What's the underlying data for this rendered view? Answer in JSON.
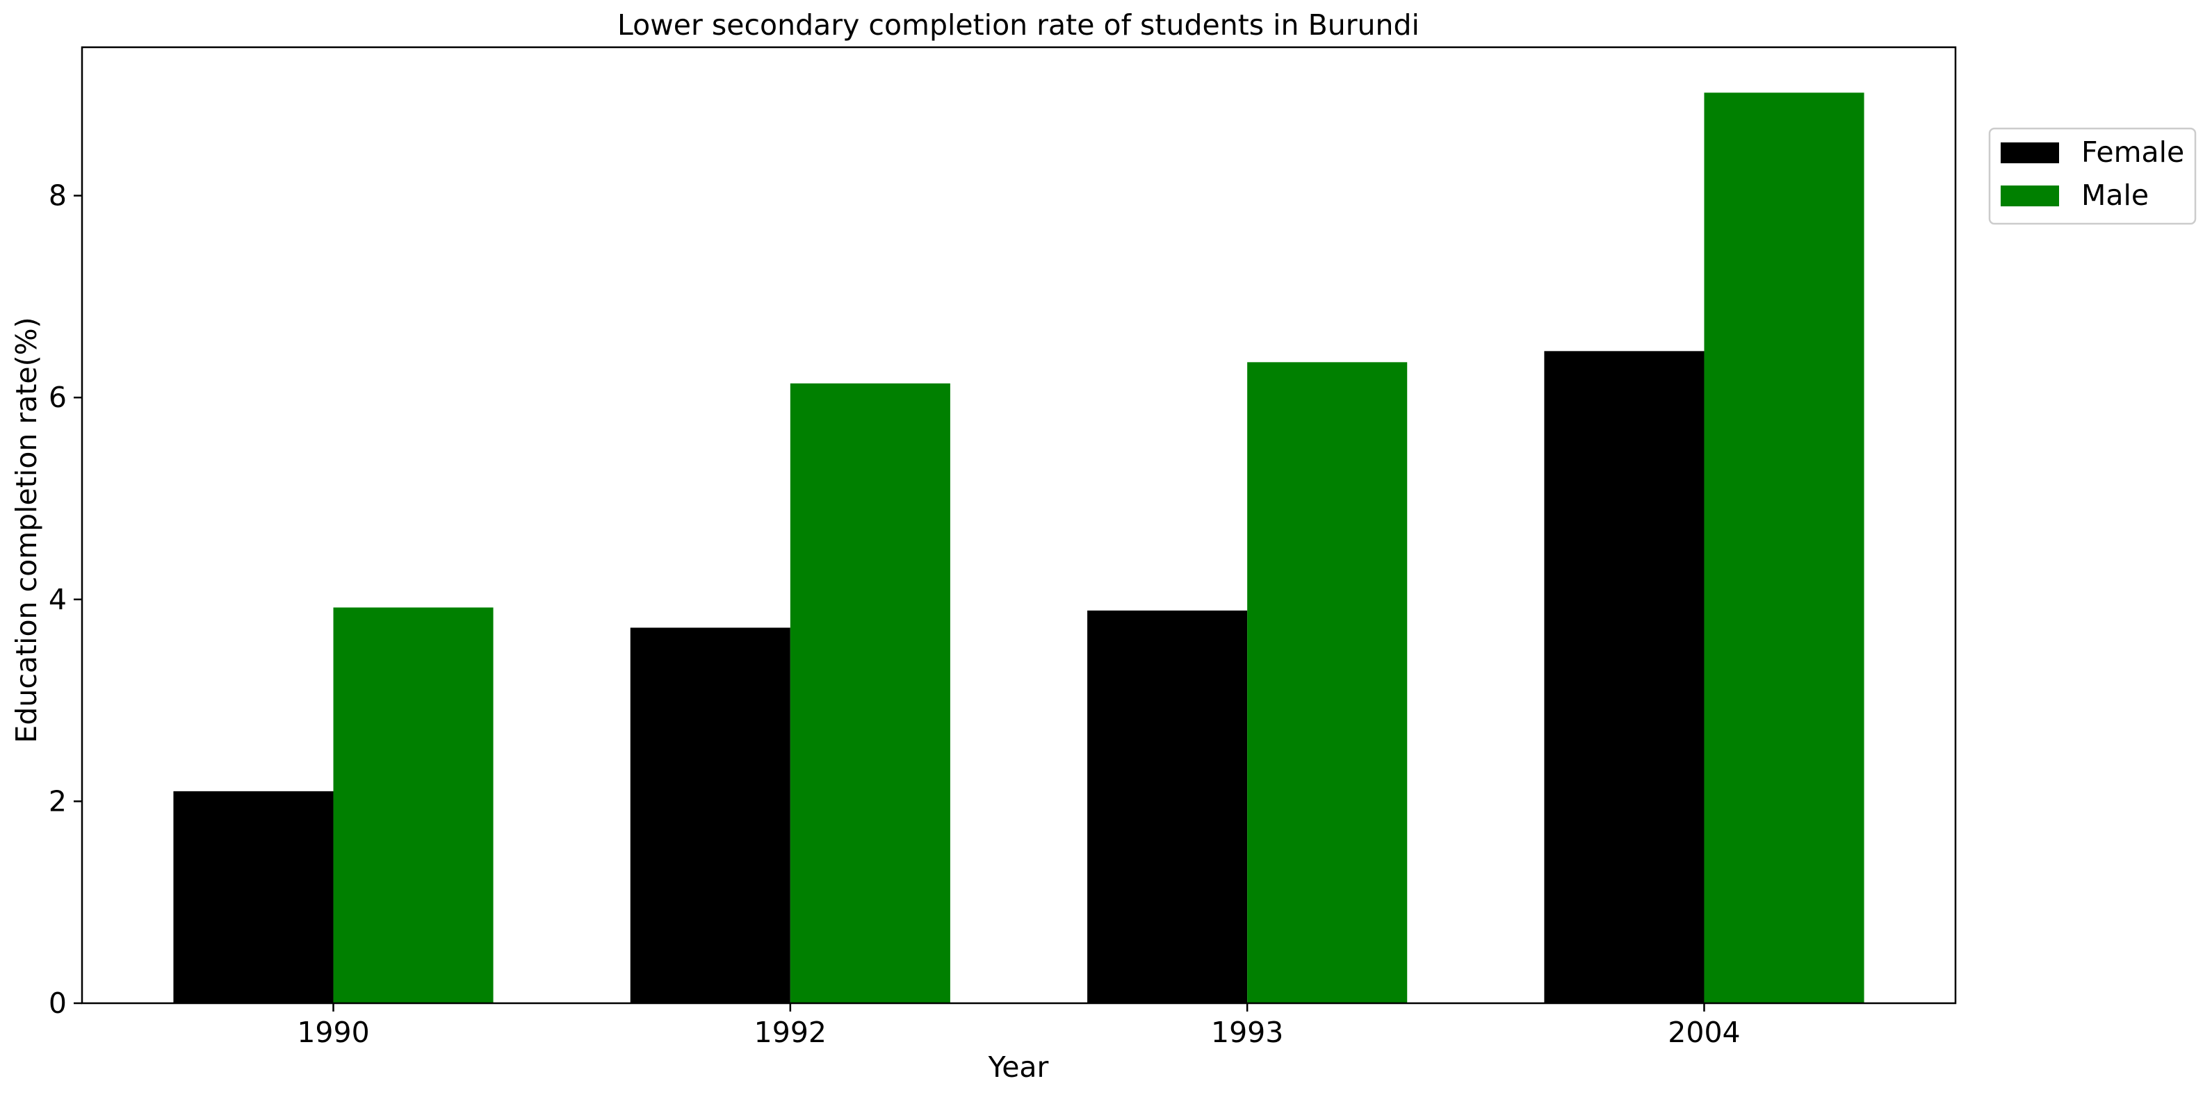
{
  "chart_data": {
    "type": "bar",
    "title": "Lower secondary completion rate of students in Burundi",
    "xlabel": "Year",
    "ylabel": "Education completion rate(%)",
    "categories": [
      "1990",
      "1992",
      "1993",
      "2004"
    ],
    "series": [
      {
        "name": "Female",
        "values": [
          2.1,
          3.72,
          3.89,
          6.46
        ],
        "color": "#000000"
      },
      {
        "name": "Male",
        "values": [
          3.92,
          6.14,
          6.35,
          9.02
        ],
        "color": "#008000"
      }
    ],
    "ylim": [
      0,
      9.47
    ],
    "yticks": [
      0,
      2,
      4,
      6,
      8
    ],
    "grid": false,
    "legend": "outside top-right"
  }
}
